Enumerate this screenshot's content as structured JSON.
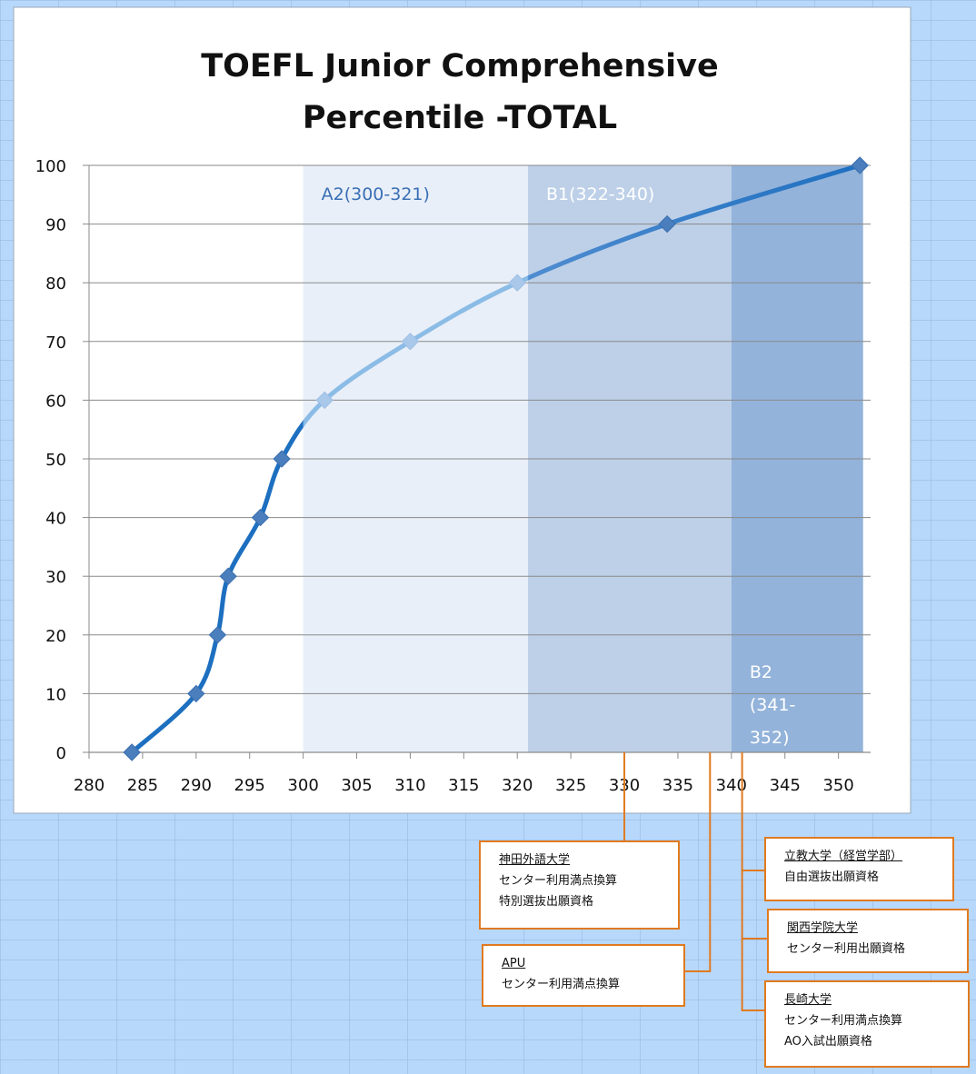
{
  "chart_data": {
    "type": "line",
    "title": "TOEFL Junior Comprehensive Percentile -TOTAL",
    "title_lines": [
      "TOEFL Junior Comprehensive",
      "Percentile -TOTAL"
    ],
    "xlabel": "",
    "ylabel": "",
    "xlim": [
      280,
      353
    ],
    "ylim": [
      0,
      100
    ],
    "x_ticks": [
      280,
      285,
      290,
      295,
      300,
      305,
      310,
      315,
      320,
      325,
      330,
      335,
      340,
      345,
      350
    ],
    "y_ticks": [
      0,
      10,
      20,
      30,
      40,
      50,
      60,
      70,
      80,
      90,
      100
    ],
    "grid": "horizontal",
    "series": [
      {
        "points": [
          {
            "x": 284,
            "y": 0
          },
          {
            "x": 290,
            "y": 10
          },
          {
            "x": 292,
            "y": 20
          },
          {
            "x": 293,
            "y": 30
          },
          {
            "x": 296,
            "y": 40
          },
          {
            "x": 298,
            "y": 50
          },
          {
            "x": 302,
            "y": 60
          },
          {
            "x": 310,
            "y": 70
          },
          {
            "x": 320,
            "y": 80
          },
          {
            "x": 334,
            "y": 90
          },
          {
            "x": 352,
            "y": 100
          }
        ]
      }
    ],
    "bands": [
      {
        "label": "A2(300-321)",
        "label_lines": [
          "A2(300-321)"
        ],
        "from": 300,
        "to": 321,
        "fill": "#e9eff8",
        "text_color": "#3a6fb5",
        "label_pos": "top"
      },
      {
        "label": "B1(322-340)",
        "label_lines": [
          "B1(322-340)"
        ],
        "from": 321,
        "to": 340,
        "fill": "#bdd0e8",
        "text_color": "#ffffff",
        "label_pos": "top"
      },
      {
        "label": "B2 (341-352)",
        "label_lines": [
          "B2",
          "(341-",
          "352)"
        ],
        "from": 340,
        "to": 352.3,
        "fill": "#93b3da",
        "text_color": "#ffffff",
        "label_pos": "bottom"
      }
    ],
    "colors": {
      "line_dark": "#1d6fc0",
      "line_light": "#8bbce6",
      "marker_dark": "#4a7ebd",
      "marker_light": "#a9c8ea",
      "grid": "#8a8a8a"
    }
  },
  "callouts": [
    {
      "anchor_x": 330,
      "title": "神田外語大学",
      "lines": [
        "センター利用満点換算",
        "特別選抜出願資格"
      ]
    },
    {
      "anchor_x": 338,
      "title": "APU",
      "lines": [
        "センター利用満点換算"
      ]
    },
    {
      "anchor_x": 341,
      "title": "立教大学（経営学部）",
      "lines": [
        "自由選抜出願資格"
      ]
    },
    {
      "anchor_x": 341,
      "title": "関西学院大学",
      "lines": [
        "センター利用出願資格"
      ]
    },
    {
      "anchor_x": 341,
      "title": "長崎大学",
      "lines": [
        "センター利用満点換算",
        "AO入試出願資格"
      ]
    }
  ]
}
